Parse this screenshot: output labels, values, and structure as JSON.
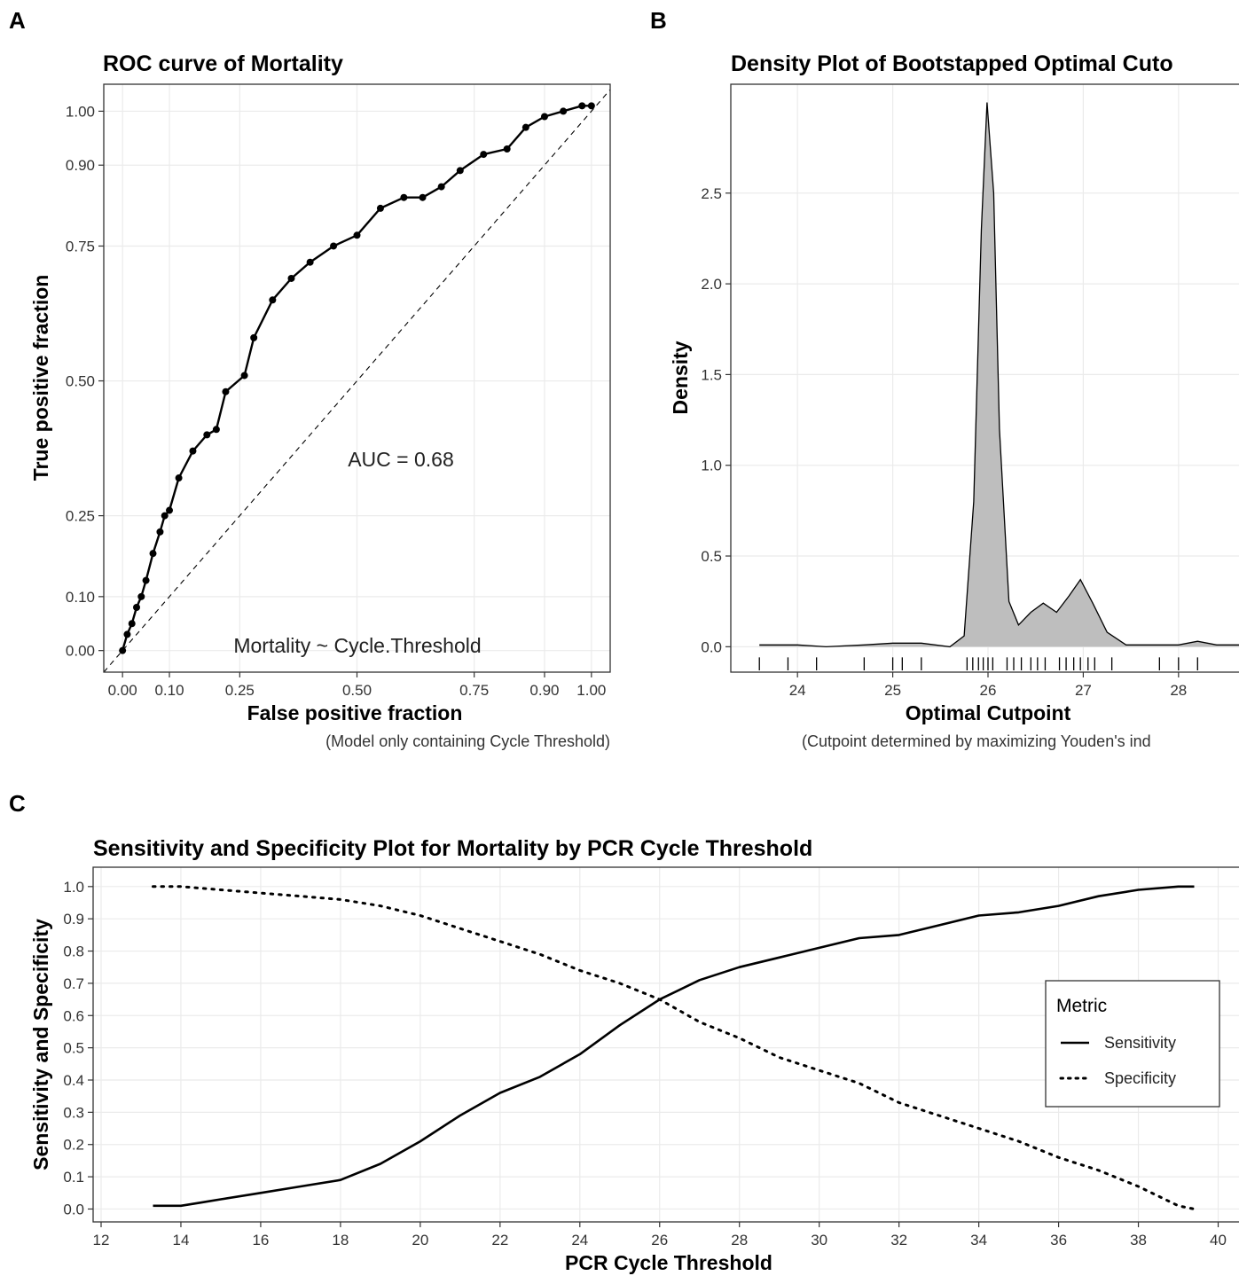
{
  "panels": {
    "a": {
      "letter": "A",
      "caption": "(Model only containing Cycle Threshold)",
      "auc_label": "AUC = 0.68",
      "formula_label": "Mortality ~ Cycle.Threshold"
    },
    "b": {
      "letter": "B",
      "caption": "(Cutpoint determined by maximizing Youden's ind"
    },
    "c": {
      "letter": "C"
    }
  },
  "chart_data": [
    {
      "type": "line",
      "title": "ROC curve of Mortality",
      "xlabel": "False positive fraction",
      "ylabel": "True positive fraction",
      "xlim": [
        -0.04,
        1.04
      ],
      "ylim": [
        -0.04,
        1.05
      ],
      "x_ticks": [
        0.0,
        0.1,
        0.25,
        0.5,
        0.75,
        0.9,
        1.0
      ],
      "x_tick_labels": [
        "0.00",
        "0.10",
        "0.25",
        "0.50",
        "0.75",
        "0.90",
        "1.00"
      ],
      "y_ticks": [
        0.0,
        0.1,
        0.25,
        0.5,
        0.75,
        0.9,
        1.0
      ],
      "y_tick_labels": [
        "0.00",
        "0.10",
        "0.25",
        "0.50",
        "0.75",
        "0.90",
        "1.00"
      ],
      "grid": true,
      "diagonal_reference": true,
      "series": [
        {
          "style": "solid-with-points",
          "points": [
            [
              0.0,
              0.0
            ],
            [
              0.01,
              0.03
            ],
            [
              0.02,
              0.05
            ],
            [
              0.03,
              0.08
            ],
            [
              0.04,
              0.1
            ],
            [
              0.05,
              0.13
            ],
            [
              0.065,
              0.18
            ],
            [
              0.08,
              0.22
            ],
            [
              0.09,
              0.25
            ],
            [
              0.1,
              0.26
            ],
            [
              0.12,
              0.32
            ],
            [
              0.15,
              0.37
            ],
            [
              0.18,
              0.4
            ],
            [
              0.2,
              0.41
            ],
            [
              0.22,
              0.48
            ],
            [
              0.26,
              0.51
            ],
            [
              0.28,
              0.58
            ],
            [
              0.32,
              0.65
            ],
            [
              0.36,
              0.69
            ],
            [
              0.4,
              0.72
            ],
            [
              0.45,
              0.75
            ],
            [
              0.5,
              0.77
            ],
            [
              0.55,
              0.82
            ],
            [
              0.6,
              0.84
            ],
            [
              0.64,
              0.84
            ],
            [
              0.68,
              0.86
            ],
            [
              0.72,
              0.89
            ],
            [
              0.77,
              0.92
            ],
            [
              0.82,
              0.93
            ],
            [
              0.86,
              0.97
            ],
            [
              0.9,
              0.99
            ],
            [
              0.94,
              1.0
            ],
            [
              0.98,
              1.01
            ],
            [
              1.0,
              1.01
            ]
          ]
        }
      ]
    },
    {
      "type": "area",
      "title": "Density Plot of Bootstapped Optimal Cuto",
      "xlabel": "Optimal Cutpoint",
      "ylabel": "Density",
      "xlim": [
        23.3,
        28.7
      ],
      "ylim": [
        -0.14,
        3.1
      ],
      "x_ticks": [
        24,
        25,
        26,
        27,
        28
      ],
      "y_ticks": [
        0.0,
        0.5,
        1.0,
        1.5,
        2.0,
        2.5
      ],
      "y_tick_labels": [
        "0.0",
        "0.5",
        "1.0",
        "1.5",
        "2.0",
        "2.5"
      ],
      "grid": true,
      "fill": "#bebebe",
      "density": [
        [
          23.6,
          0.01
        ],
        [
          24.0,
          0.01
        ],
        [
          24.3,
          0.0
        ],
        [
          24.7,
          0.01
        ],
        [
          25.0,
          0.02
        ],
        [
          25.3,
          0.02
        ],
        [
          25.6,
          0.0
        ],
        [
          25.75,
          0.06
        ],
        [
          25.85,
          0.8
        ],
        [
          25.93,
          2.3
        ],
        [
          25.99,
          3.0
        ],
        [
          26.06,
          2.5
        ],
        [
          26.12,
          1.2
        ],
        [
          26.22,
          0.25
        ],
        [
          26.32,
          0.12
        ],
        [
          26.45,
          0.19
        ],
        [
          26.58,
          0.24
        ],
        [
          26.72,
          0.19
        ],
        [
          26.85,
          0.28
        ],
        [
          26.97,
          0.37
        ],
        [
          27.1,
          0.24
        ],
        [
          27.25,
          0.08
        ],
        [
          27.45,
          0.01
        ],
        [
          27.8,
          0.01
        ],
        [
          28.0,
          0.01
        ],
        [
          28.2,
          0.03
        ],
        [
          28.4,
          0.01
        ],
        [
          28.7,
          0.01
        ]
      ],
      "rug": [
        23.6,
        23.9,
        24.2,
        24.7,
        25.0,
        25.1,
        25.3,
        25.78,
        25.84,
        25.9,
        25.95,
        26.0,
        26.05,
        26.2,
        26.27,
        26.35,
        26.45,
        26.52,
        26.6,
        26.75,
        26.82,
        26.9,
        26.97,
        27.05,
        27.12,
        27.3,
        27.8,
        28.0,
        28.2
      ]
    },
    {
      "type": "line",
      "title": "Sensitivity and Specificity Plot for Mortality by PCR Cycle Threshold",
      "xlabel": "PCR Cycle Threshold",
      "ylabel": "Sensitivity and Specificity",
      "xlim": [
        11.8,
        40.7
      ],
      "ylim": [
        -0.04,
        1.06
      ],
      "x_ticks": [
        12,
        14,
        16,
        18,
        20,
        22,
        24,
        26,
        28,
        30,
        32,
        34,
        36,
        38,
        40
      ],
      "y_ticks": [
        0.0,
        0.1,
        0.2,
        0.3,
        0.4,
        0.5,
        0.6,
        0.7,
        0.8,
        0.9,
        1.0
      ],
      "y_tick_labels": [
        "0.0",
        "0.1",
        "0.2",
        "0.3",
        "0.4",
        "0.5",
        "0.6",
        "0.7",
        "0.8",
        "0.9",
        "1.0"
      ],
      "grid": true,
      "legend": {
        "title": "Metric",
        "position": "right"
      },
      "series": [
        {
          "name": "Sensitivity",
          "style": "solid",
          "x": [
            13.3,
            14.0,
            14.5,
            15.0,
            16.0,
            17.0,
            18.0,
            19.0,
            20.0,
            21.0,
            22.0,
            23.0,
            24.0,
            25.0,
            26.0,
            27.0,
            28.0,
            29.0,
            30.0,
            31.0,
            32.0,
            33.0,
            34.0,
            35.0,
            36.0,
            37.0,
            38.0,
            39.0,
            39.4
          ],
          "values": [
            0.01,
            0.01,
            0.02,
            0.03,
            0.05,
            0.07,
            0.09,
            0.14,
            0.21,
            0.29,
            0.36,
            0.41,
            0.48,
            0.57,
            0.65,
            0.71,
            0.75,
            0.78,
            0.81,
            0.84,
            0.85,
            0.88,
            0.91,
            0.92,
            0.94,
            0.97,
            0.99,
            1.0,
            1.0
          ]
        },
        {
          "name": "Specificity",
          "style": "dotted",
          "x": [
            13.3,
            14.0,
            15.0,
            16.0,
            17.0,
            18.0,
            19.0,
            20.0,
            21.0,
            22.0,
            23.0,
            24.0,
            25.0,
            26.0,
            27.0,
            28.0,
            29.0,
            30.0,
            31.0,
            32.0,
            33.0,
            34.0,
            35.0,
            36.0,
            37.0,
            38.0,
            38.5,
            39.0,
            39.4
          ],
          "values": [
            1.0,
            1.0,
            0.99,
            0.98,
            0.97,
            0.96,
            0.94,
            0.91,
            0.87,
            0.83,
            0.79,
            0.74,
            0.7,
            0.65,
            0.58,
            0.53,
            0.47,
            0.43,
            0.39,
            0.33,
            0.29,
            0.25,
            0.21,
            0.16,
            0.12,
            0.07,
            0.04,
            0.01,
            0.0
          ]
        }
      ]
    }
  ]
}
